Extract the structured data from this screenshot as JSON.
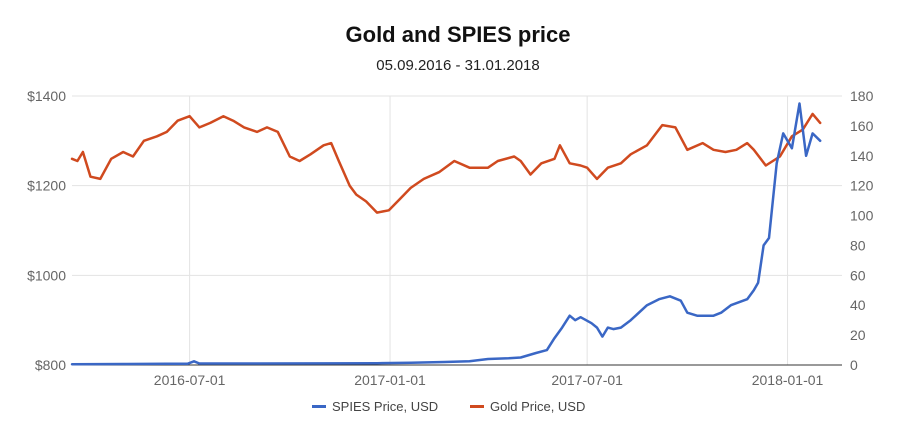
{
  "chart_data": {
    "type": "line",
    "title": "Gold and SPIES price",
    "subtitle": "05.09.2016 - 31.01.2018",
    "x_ticks": [
      "2016-07-01",
      "2017-01-01",
      "2017-07-01",
      "2018-01-01"
    ],
    "x_range": [
      "2016-03-15",
      "2018-02-20"
    ],
    "y_left": {
      "ticks": [
        "$800",
        "$1000",
        "$1200",
        "$1400"
      ],
      "ylim": [
        800,
        1400
      ]
    },
    "y_right": {
      "ticks": [
        "0",
        "20",
        "40",
        "60",
        "80",
        "100",
        "120",
        "140",
        "160",
        "180"
      ],
      "ylim": [
        0,
        180
      ]
    },
    "grid": true,
    "legend_position": "bottom",
    "series": [
      {
        "name": "SPIES Price, USD",
        "axis": "right",
        "color": "#3a67c5",
        "points": [
          [
            "2016-03-15",
            0.5
          ],
          [
            "2016-05-01",
            0.7
          ],
          [
            "2016-06-10",
            0.9
          ],
          [
            "2016-06-29",
            0.8
          ],
          [
            "2016-07-05",
            2.5
          ],
          [
            "2016-07-10",
            1.0
          ],
          [
            "2016-09-01",
            1.0
          ],
          [
            "2016-11-01",
            1.1
          ],
          [
            "2016-12-20",
            1.2
          ],
          [
            "2017-01-20",
            1.5
          ],
          [
            "2017-02-20",
            2.0
          ],
          [
            "2017-03-15",
            2.5
          ],
          [
            "2017-04-01",
            4.0
          ],
          [
            "2017-04-20",
            4.5
          ],
          [
            "2017-05-01",
            5.0
          ],
          [
            "2017-05-15",
            8.0
          ],
          [
            "2017-05-25",
            10.0
          ],
          [
            "2017-06-01",
            18.0
          ],
          [
            "2017-06-08",
            25.0
          ],
          [
            "2017-06-15",
            33.0
          ],
          [
            "2017-06-20",
            30.0
          ],
          [
            "2017-06-25",
            32.0
          ],
          [
            "2017-06-30",
            30.0
          ],
          [
            "2017-07-05",
            28.0
          ],
          [
            "2017-07-10",
            25.0
          ],
          [
            "2017-07-15",
            19.0
          ],
          [
            "2017-07-20",
            25.0
          ],
          [
            "2017-07-25",
            24.0
          ],
          [
            "2017-08-01",
            25.0
          ],
          [
            "2017-08-10",
            30.0
          ],
          [
            "2017-08-25",
            40.0
          ],
          [
            "2017-09-05",
            44.0
          ],
          [
            "2017-09-15",
            46.0
          ],
          [
            "2017-09-25",
            43.0
          ],
          [
            "2017-10-01",
            35.0
          ],
          [
            "2017-10-10",
            33.0
          ],
          [
            "2017-10-25",
            33.0
          ],
          [
            "2017-11-01",
            35.0
          ],
          [
            "2017-11-10",
            40.0
          ],
          [
            "2017-11-25",
            44.0
          ],
          [
            "2017-12-01",
            50.0
          ],
          [
            "2017-12-05",
            55.0
          ],
          [
            "2017-12-10",
            80.0
          ],
          [
            "2017-12-15",
            85.0
          ],
          [
            "2017-12-22",
            135.0
          ],
          [
            "2017-12-28",
            155.0
          ],
          [
            "2018-01-01",
            150.0
          ],
          [
            "2018-01-05",
            145.0
          ],
          [
            "2018-01-12",
            175.0
          ],
          [
            "2018-01-18",
            140.0
          ],
          [
            "2018-01-24",
            155.0
          ],
          [
            "2018-01-31",
            150.0
          ]
        ]
      },
      {
        "name": "Gold Price, USD",
        "axis": "left",
        "color": "#d04a1f",
        "points": [
          [
            "2016-03-15",
            1260
          ],
          [
            "2016-03-20",
            1255
          ],
          [
            "2016-03-25",
            1275
          ],
          [
            "2016-04-01",
            1220
          ],
          [
            "2016-04-10",
            1215
          ],
          [
            "2016-04-20",
            1260
          ],
          [
            "2016-05-01",
            1275
          ],
          [
            "2016-05-10",
            1265
          ],
          [
            "2016-05-20",
            1300
          ],
          [
            "2016-06-01",
            1310
          ],
          [
            "2016-06-10",
            1320
          ],
          [
            "2016-06-20",
            1345
          ],
          [
            "2016-07-01",
            1355
          ],
          [
            "2016-07-10",
            1330
          ],
          [
            "2016-07-20",
            1340
          ],
          [
            "2016-08-01",
            1355
          ],
          [
            "2016-08-10",
            1345
          ],
          [
            "2016-08-20",
            1330
          ],
          [
            "2016-09-01",
            1320
          ],
          [
            "2016-09-10",
            1330
          ],
          [
            "2016-09-20",
            1320
          ],
          [
            "2016-10-01",
            1265
          ],
          [
            "2016-10-10",
            1255
          ],
          [
            "2016-10-20",
            1270
          ],
          [
            "2016-11-01",
            1290
          ],
          [
            "2016-11-08",
            1295
          ],
          [
            "2016-11-15",
            1255
          ],
          [
            "2016-11-25",
            1200
          ],
          [
            "2016-12-01",
            1180
          ],
          [
            "2016-12-10",
            1165
          ],
          [
            "2016-12-20",
            1140
          ],
          [
            "2016-12-31",
            1145
          ],
          [
            "2017-01-10",
            1170
          ],
          [
            "2017-01-20",
            1195
          ],
          [
            "2017-02-01",
            1215
          ],
          [
            "2017-02-15",
            1230
          ],
          [
            "2017-03-01",
            1255
          ],
          [
            "2017-03-15",
            1240
          ],
          [
            "2017-04-01",
            1240
          ],
          [
            "2017-04-10",
            1255
          ],
          [
            "2017-04-25",
            1265
          ],
          [
            "2017-05-01",
            1255
          ],
          [
            "2017-05-10",
            1225
          ],
          [
            "2017-05-20",
            1250
          ],
          [
            "2017-06-01",
            1260
          ],
          [
            "2017-06-06",
            1290
          ],
          [
            "2017-06-15",
            1250
          ],
          [
            "2017-06-25",
            1245
          ],
          [
            "2017-07-01",
            1240
          ],
          [
            "2017-07-10",
            1215
          ],
          [
            "2017-07-20",
            1240
          ],
          [
            "2017-08-01",
            1250
          ],
          [
            "2017-08-10",
            1270
          ],
          [
            "2017-08-25",
            1290
          ],
          [
            "2017-09-08",
            1335
          ],
          [
            "2017-09-20",
            1330
          ],
          [
            "2017-10-01",
            1280
          ],
          [
            "2017-10-15",
            1295
          ],
          [
            "2017-10-25",
            1280
          ],
          [
            "2017-11-05",
            1275
          ],
          [
            "2017-11-15",
            1280
          ],
          [
            "2017-11-25",
            1295
          ],
          [
            "2017-12-01",
            1280
          ],
          [
            "2017-12-12",
            1245
          ],
          [
            "2017-12-25",
            1265
          ],
          [
            "2018-01-05",
            1310
          ],
          [
            "2018-01-15",
            1325
          ],
          [
            "2018-01-24",
            1360
          ],
          [
            "2018-01-31",
            1340
          ]
        ]
      }
    ]
  }
}
